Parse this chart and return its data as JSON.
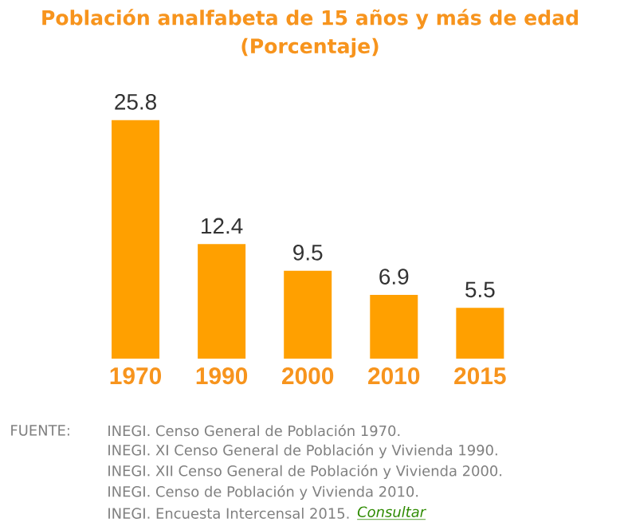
{
  "chart_data": {
    "type": "bar",
    "title": "Población analfabeta de 15 años y más de edad",
    "subtitle": "(Porcentaje)",
    "categories": [
      "1970",
      "1990",
      "2000",
      "2010",
      "2015"
    ],
    "values": [
      25.8,
      12.4,
      9.5,
      6.9,
      5.5
    ],
    "color": "#ffa000",
    "data_labels": true,
    "annotations": [
      "FUENTE:",
      "INEGI. Censo General de Población 1970.",
      "INEGI. XI Censo General de Población y Vivienda 1990.",
      "INEGI. XII Censo General de Población y Vivienda 2000.",
      "INEGI. Censo de Población y Vivienda 2010.",
      "INEGI. Encuesta Intercensal 2015.",
      "Consultar"
    ]
  }
}
